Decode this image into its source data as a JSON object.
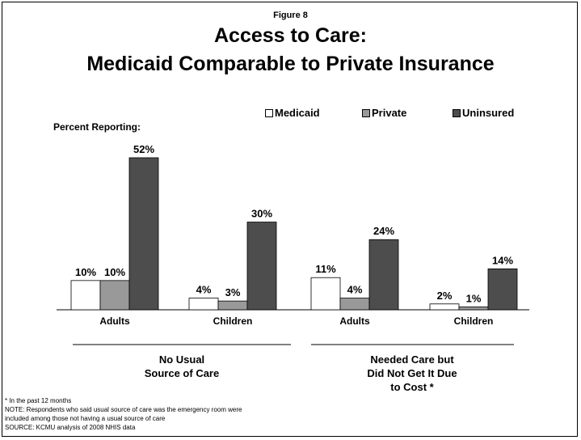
{
  "figure_label": "Figure 8",
  "title_line1": "Access to Care:",
  "title_line2": "Medicaid Comparable to Private Insurance",
  "colors": {
    "Medicaid": "#ffffff",
    "Private": "#999999",
    "Uninsured": "#4d4d4d"
  },
  "chart_data": {
    "type": "bar",
    "ylabel": "Percent Reporting:",
    "ylim": [
      0,
      52
    ],
    "legend": "top-right",
    "categories": [
      "Adults",
      "Children",
      "Adults",
      "Children"
    ],
    "groups": [
      {
        "label": "No Usual\nSource of Care",
        "categories": [
          "Adults",
          "Children"
        ]
      },
      {
        "label": "Needed Care but\nDid Not Get It Due\nto Cost *",
        "categories": [
          "Adults",
          "Children"
        ]
      }
    ],
    "series": [
      {
        "name": "Medicaid",
        "values": [
          10,
          4,
          11,
          2
        ]
      },
      {
        "name": "Private",
        "values": [
          10,
          3,
          4,
          1
        ]
      },
      {
        "name": "Uninsured",
        "values": [
          52,
          30,
          24,
          14
        ]
      }
    ],
    "data_labels": [
      [
        "10%",
        "4%",
        "11%",
        "2%"
      ],
      [
        "10%",
        "3%",
        "4%",
        "1%"
      ],
      [
        "52%",
        "30%",
        "24%",
        "14%"
      ]
    ]
  },
  "group_labels": {
    "g1_line1": "No Usual",
    "g1_line2": "Source of Care",
    "g2_line1": "Needed Care but",
    "g2_line2": "Did Not Get It Due",
    "g2_line3": "to Cost *"
  },
  "footnotes": {
    "line1": "* In the past 12 months",
    "line2": "NOTE: Respondents who said usual source of care was the emergency room were",
    "line3": "included among those not having a usual source of care",
    "line4": "SOURCE: KCMU analysis of 2008 NHIS data"
  }
}
